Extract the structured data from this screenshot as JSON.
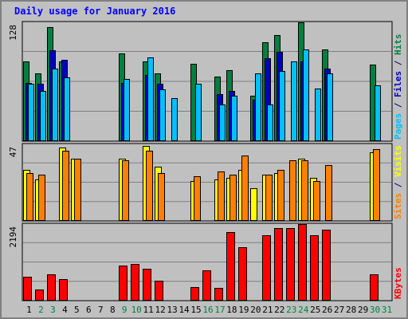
{
  "chart_data": {
    "type": "bar",
    "title": "Daily usage for January 2016",
    "x": [
      "1",
      "2",
      "3",
      "4",
      "5",
      "6",
      "7",
      "8",
      "9",
      "10",
      "11",
      "12",
      "13",
      "14",
      "15",
      "16",
      "17",
      "18",
      "19",
      "20",
      "21",
      "22",
      "23",
      "24",
      "25",
      "26",
      "27",
      "28",
      "29",
      "30",
      "31"
    ],
    "weekend_days": [
      "2",
      "3",
      "9",
      "10",
      "16",
      "17",
      "23",
      "24",
      "30",
      "31"
    ],
    "panels": [
      {
        "id": "hits-panel",
        "max_label": "128",
        "ylim": [
          0,
          128
        ],
        "legend": [
          {
            "text": "Pages",
            "color": "#00c0ff"
          },
          {
            "text": " / ",
            "color": "#000080"
          },
          {
            "text": "Files",
            "color": "#0000c0"
          },
          {
            "text": " / ",
            "color": "#000080"
          },
          {
            "text": "Hits",
            "color": "#008040"
          }
        ],
        "series": [
          {
            "name": "Hits",
            "color": "#008040",
            "values": [
              86,
              73,
              123,
              86,
              0,
              0,
              0,
              0,
              94,
              0,
              86,
              73,
              0,
              0,
              83,
              0,
              69,
              76,
              0,
              48,
              106,
              114,
              0,
              130,
              0,
              99,
              0,
              0,
              0,
              82,
              0
            ]
          },
          {
            "name": "Files",
            "color": "#0000c0",
            "values": [
              62,
              61,
              98,
              87,
              0,
              0,
              0,
              0,
              62,
              0,
              71,
              61,
              0,
              0,
              0,
              0,
              50,
              54,
              0,
              44,
              89,
              96,
              0,
              86,
              0,
              78,
              0,
              0,
              0,
              0,
              0
            ]
          },
          {
            "name": "Pages",
            "color": "#00c0ff",
            "values": [
              61,
              54,
              78,
              68,
              0,
              0,
              0,
              0,
              67,
              0,
              90,
              55,
              46,
              0,
              61,
              0,
              39,
              48,
              0,
              73,
              39,
              75,
              86,
              99,
              56,
              73,
              0,
              0,
              0,
              60,
              0
            ]
          }
        ]
      },
      {
        "id": "visits-panel",
        "max_label": "47",
        "ylim": [
          0,
          47
        ],
        "legend": [
          {
            "text": "Sites",
            "color": "#ff8000"
          },
          {
            "text": " / ",
            "color": "#000080"
          },
          {
            "text": "Visits",
            "color": "#ffff00"
          }
        ],
        "series": [
          {
            "name": "Visits",
            "color": "#ffff00",
            "values": [
              31,
              25,
              0,
              45,
              38,
              0,
              0,
              0,
              38,
              0,
              46,
              33,
              0,
              0,
              24,
              0,
              25,
              26,
              31,
              20,
              28,
              29,
              0,
              38,
              26,
              0,
              0,
              0,
              0,
              42,
              0
            ]
          },
          {
            "name": "Sites",
            "color": "#ff8000",
            "values": [
              29,
              28,
              0,
              43,
              38,
              0,
              0,
              0,
              37,
              0,
              43,
              29,
              0,
              0,
              27,
              0,
              30,
              28,
              40,
              0,
              28,
              31,
              37,
              37,
              24,
              34,
              0,
              0,
              0,
              44,
              0
            ]
          }
        ]
      },
      {
        "id": "kbytes-panel",
        "max_label": "2194",
        "ylim": [
          0,
          2194
        ],
        "legend": [
          {
            "text": "KBytes",
            "color": "#ff0000"
          }
        ],
        "series": [
          {
            "name": "KBytes",
            "color": "#ff0000",
            "values": [
              660,
              290,
              750,
              590,
              0,
              0,
              0,
              0,
              990,
              1030,
              910,
              550,
              0,
              0,
              360,
              860,
              350,
              1970,
              1520,
              0,
              1880,
              2080,
              2080,
              2200,
              1880,
              2040,
              0,
              0,
              0,
              750,
              0
            ]
          }
        ]
      }
    ]
  },
  "colors": {
    "background": "#c0c0c0",
    "plot": "#c0c0c0",
    "grid": "#808080",
    "title": "#0000ff",
    "weekday": "#000000",
    "weekend": "#008040"
  }
}
